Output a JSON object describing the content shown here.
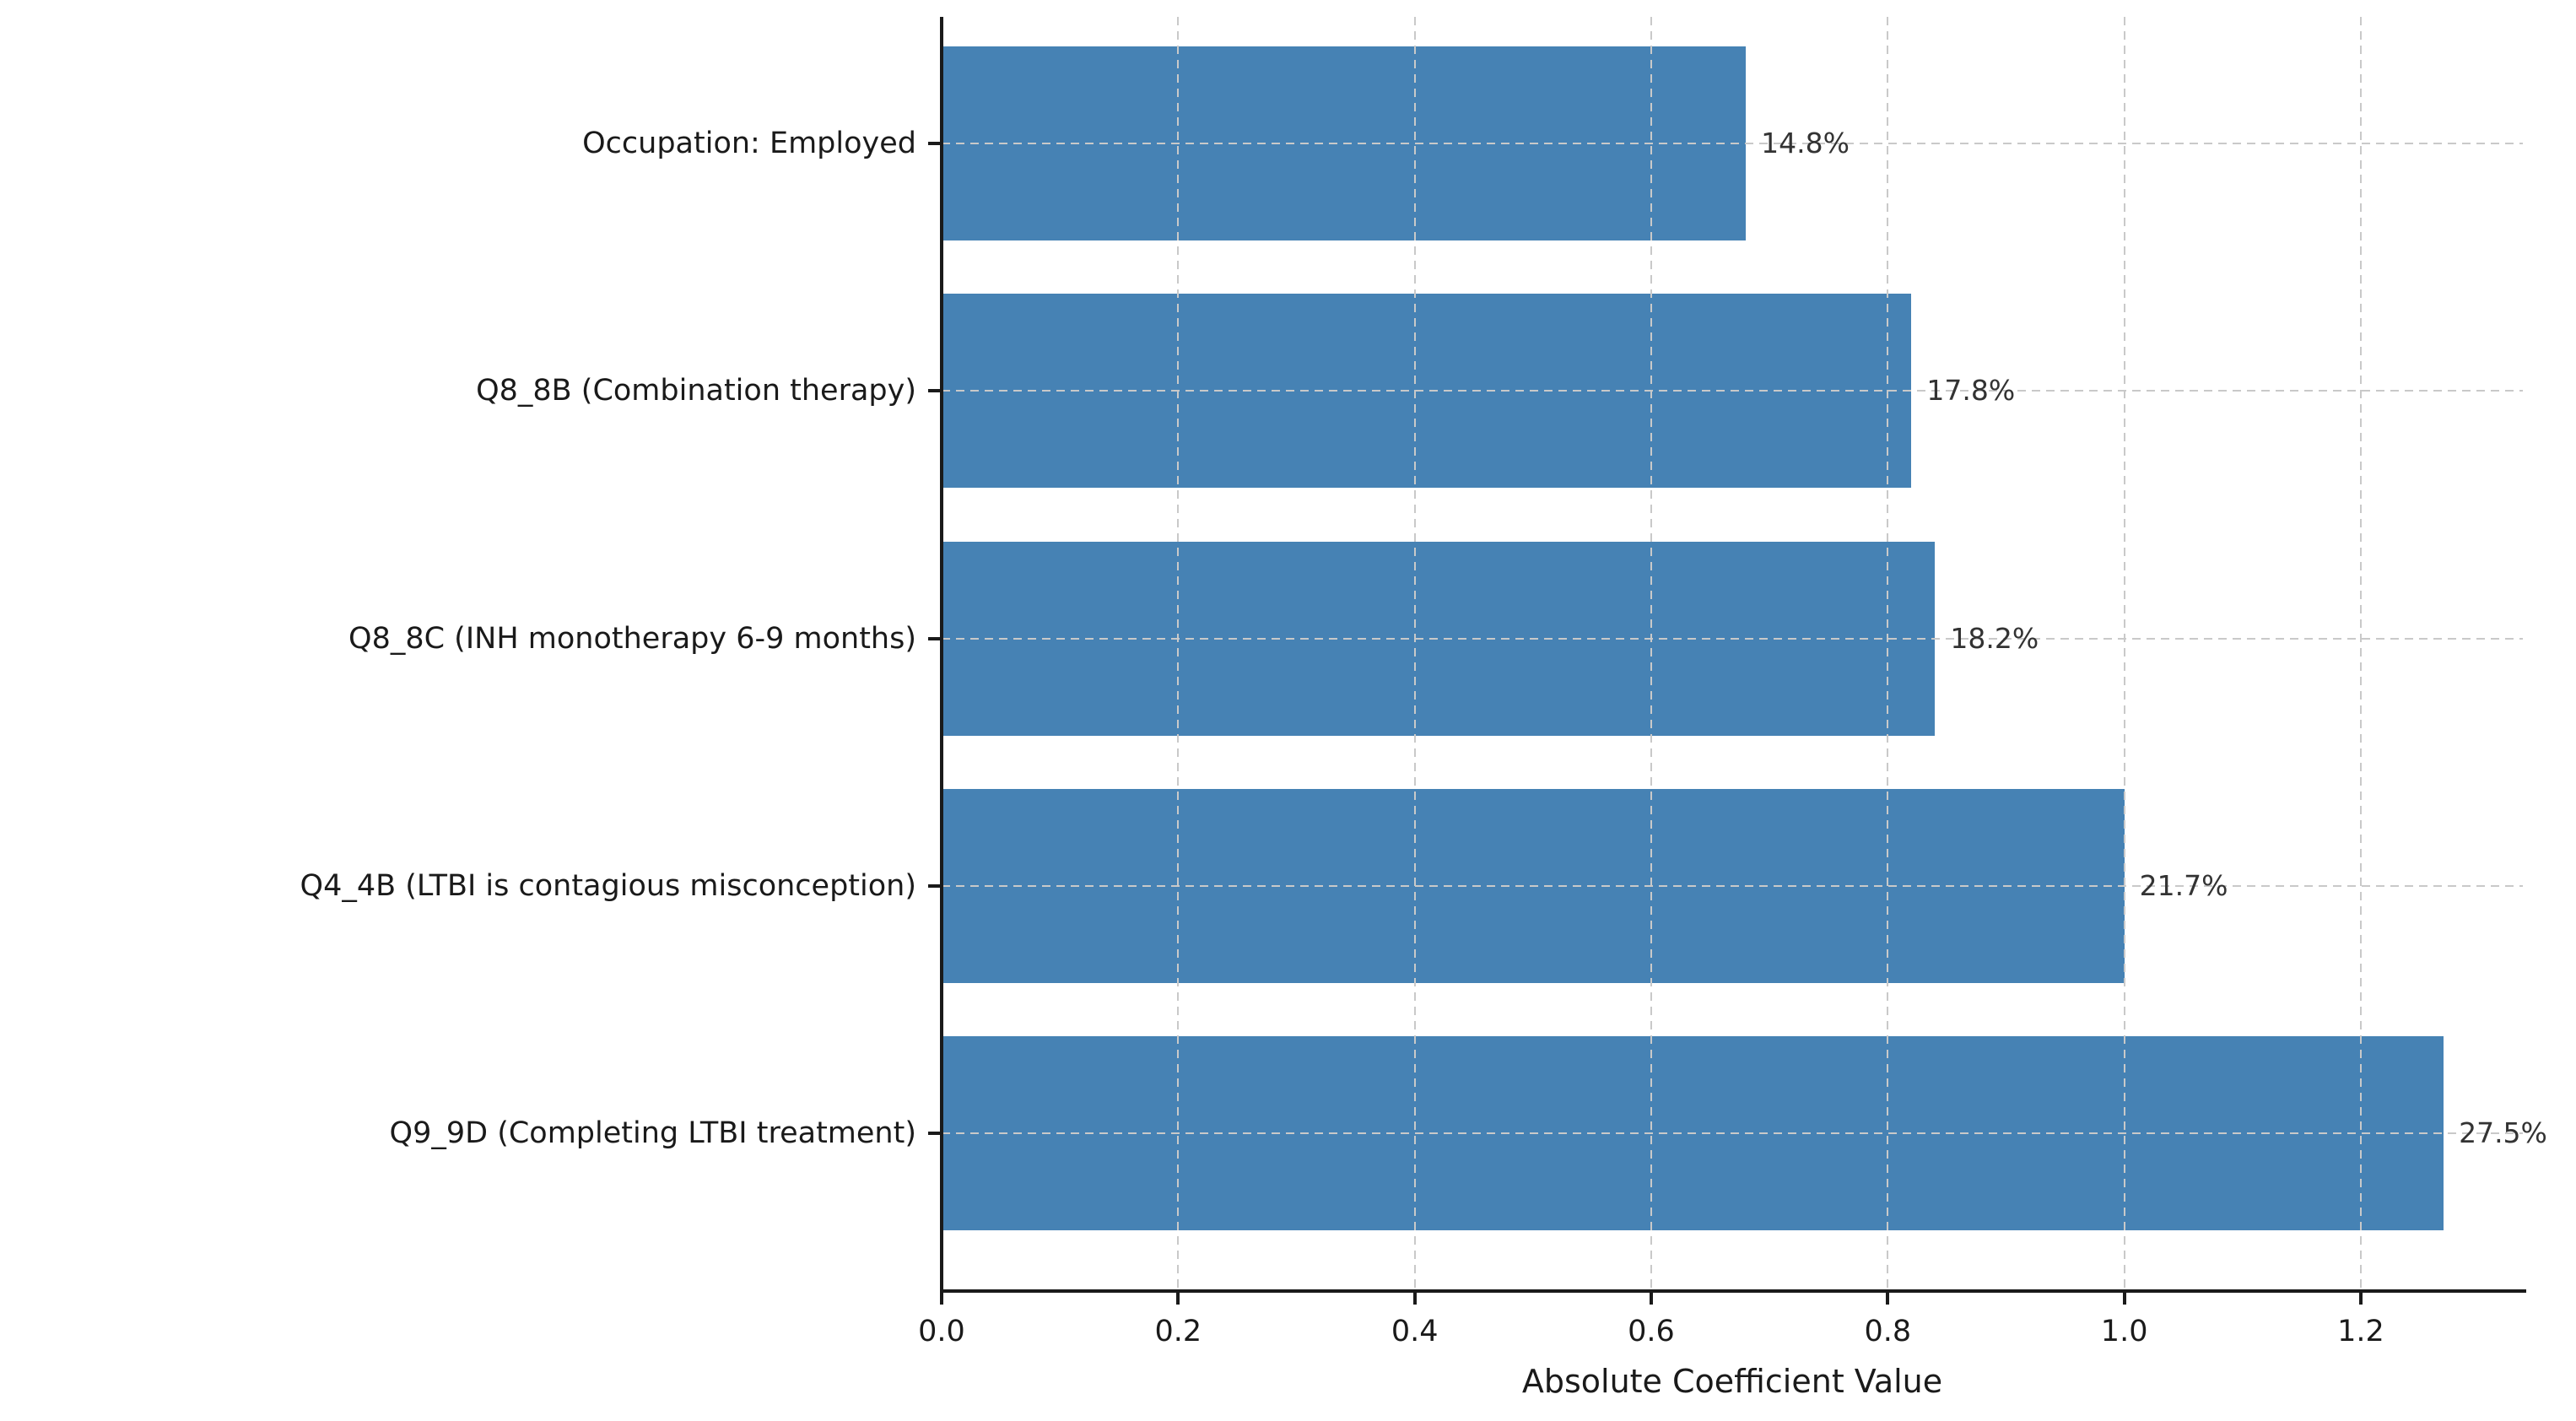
{
  "chart_data": {
    "type": "bar",
    "orientation": "horizontal",
    "title": "",
    "xlabel": "Absolute Coefficient Value",
    "ylabel": "",
    "categories": [
      "Occupation: Employed",
      "Q8_8B (Combination therapy)",
      "Q8_8C (INH monotherapy 6-9 months)",
      "Q4_4B (LTBI is contagious misconception)",
      "Q9_9D (Completing LTBI treatment)"
    ],
    "values": [
      0.68,
      0.82,
      0.84,
      1.0,
      1.27
    ],
    "bar_labels": [
      "14.8%",
      "17.8%",
      "18.2%",
      "21.7%",
      "27.5%"
    ],
    "xticks": [
      0.0,
      0.2,
      0.4,
      0.6,
      0.8,
      1.0,
      1.2
    ],
    "xtick_labels": [
      "0.0",
      "0.2",
      "0.4",
      "0.6",
      "0.8",
      "1.0",
      "1.2"
    ],
    "xlim": [
      0,
      1.337
    ],
    "bar_color": "#4682B4",
    "grid": "dashed, both axes, light gray",
    "legend_position": "none"
  }
}
